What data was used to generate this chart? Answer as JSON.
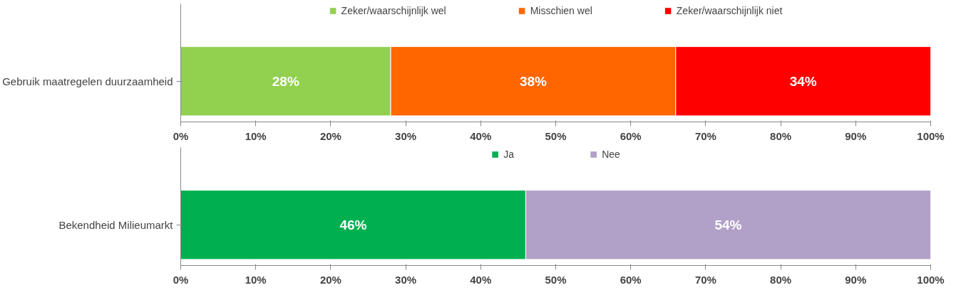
{
  "chart_data": [
    {
      "type": "bar",
      "orientation": "horizontal",
      "stacked": true,
      "categories": [
        "Gebruik maatregelen duurzaamheid"
      ],
      "series": [
        {
          "name": "Zeker/waarschijnlijk wel",
          "color": "#92d050",
          "values": [
            28
          ],
          "value_labels": [
            "28%"
          ]
        },
        {
          "name": "Misschien wel",
          "color": "#ff6600",
          "values": [
            38
          ],
          "value_labels": [
            "38%"
          ]
        },
        {
          "name": "Zeker/waarschijnlijk niet",
          "color": "#ff0000",
          "values": [
            34
          ],
          "value_labels": [
            "34%"
          ]
        }
      ],
      "xlim": [
        0,
        100
      ],
      "xticks": [
        {
          "value": 0,
          "label": "0%"
        },
        {
          "value": 10,
          "label": "10%"
        },
        {
          "value": 20,
          "label": "20%"
        },
        {
          "value": 30,
          "label": "30%"
        },
        {
          "value": 40,
          "label": "40%"
        },
        {
          "value": 50,
          "label": "50%"
        },
        {
          "value": 60,
          "label": "60%"
        },
        {
          "value": 70,
          "label": "70%"
        },
        {
          "value": 80,
          "label": "80%"
        },
        {
          "value": 90,
          "label": "90%"
        },
        {
          "value": 100,
          "label": "100%"
        }
      ],
      "legend": "top",
      "grid": false
    },
    {
      "type": "bar",
      "orientation": "horizontal",
      "stacked": true,
      "categories": [
        "Bekendheid Milieumarkt"
      ],
      "series": [
        {
          "name": "Ja",
          "color": "#00b050",
          "values": [
            46
          ],
          "value_labels": [
            "46%"
          ]
        },
        {
          "name": "Nee",
          "color": "#b1a0c7",
          "values": [
            54
          ],
          "value_labels": [
            "54%"
          ]
        }
      ],
      "xlim": [
        0,
        100
      ],
      "xticks": [
        {
          "value": 0,
          "label": "0%"
        },
        {
          "value": 10,
          "label": "10%"
        },
        {
          "value": 20,
          "label": "20%"
        },
        {
          "value": 30,
          "label": "30%"
        },
        {
          "value": 40,
          "label": "40%"
        },
        {
          "value": 50,
          "label": "50%"
        },
        {
          "value": 60,
          "label": "60%"
        },
        {
          "value": 70,
          "label": "70%"
        },
        {
          "value": 80,
          "label": "80%"
        },
        {
          "value": 90,
          "label": "90%"
        },
        {
          "value": 100,
          "label": "100%"
        }
      ],
      "legend": "top",
      "grid": false
    }
  ]
}
